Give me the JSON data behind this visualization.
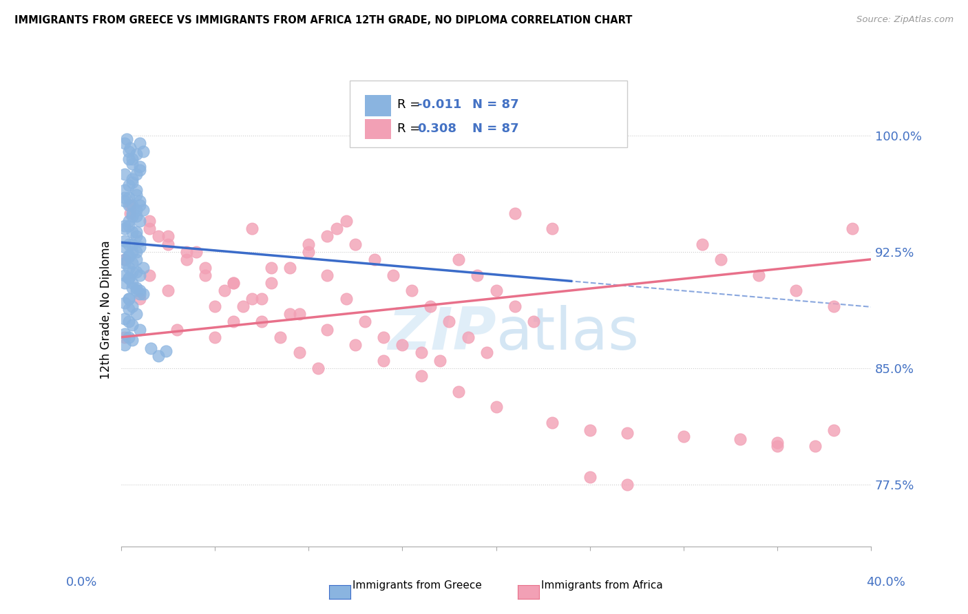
{
  "title": "IMMIGRANTS FROM GREECE VS IMMIGRANTS FROM AFRICA 12TH GRADE, NO DIPLOMA CORRELATION CHART",
  "source": "Source: ZipAtlas.com",
  "ylabel": "12th Grade, No Diploma",
  "y_ticks": [
    0.775,
    0.85,
    0.925,
    1.0
  ],
  "y_tick_labels": [
    "77.5%",
    "85.0%",
    "92.5%",
    "100.0%"
  ],
  "xmin": 0.0,
  "xmax": 0.4,
  "ymin": 0.735,
  "ymax": 1.04,
  "color_greece": "#8AB4E0",
  "color_africa": "#F2A0B5",
  "color_greece_line": "#3B6CC9",
  "color_africa_line": "#E8708A",
  "color_axis_labels": "#4472C4",
  "greece_R": -0.011,
  "greece_N": 87,
  "africa_R": 0.308,
  "africa_N": 87,
  "greece_scatter_x": [
    0.002,
    0.004,
    0.006,
    0.003,
    0.005,
    0.008,
    0.01,
    0.006,
    0.012,
    0.004,
    0.002,
    0.006,
    0.01,
    0.008,
    0.004,
    0.002,
    0.006,
    0.012,
    0.008,
    0.01,
    0.004,
    0.002,
    0.006,
    0.008,
    0.01,
    0.004,
    0.002,
    0.006,
    0.004,
    0.008,
    0.002,
    0.004,
    0.006,
    0.01,
    0.008,
    0.002,
    0.004,
    0.006,
    0.008,
    0.01,
    0.002,
    0.004,
    0.006,
    0.002,
    0.004,
    0.006,
    0.008,
    0.01,
    0.012,
    0.004,
    0.002,
    0.006,
    0.01,
    0.008,
    0.004,
    0.002,
    0.006,
    0.012,
    0.008,
    0.01,
    0.004,
    0.002,
    0.006,
    0.008,
    0.01,
    0.004,
    0.002,
    0.006,
    0.004,
    0.008,
    0.002,
    0.004,
    0.006,
    0.01,
    0.008,
    0.002,
    0.004,
    0.006,
    0.008,
    0.01,
    0.002,
    0.004,
    0.006,
    0.002,
    0.016,
    0.024,
    0.02
  ],
  "greece_scatter_y": [
    0.995,
    0.99,
    0.985,
    0.998,
    0.992,
    0.988,
    0.995,
    0.982,
    0.99,
    0.985,
    0.975,
    0.97,
    0.98,
    0.965,
    0.96,
    0.958,
    0.955,
    0.952,
    0.948,
    0.945,
    0.942,
    0.94,
    0.938,
    0.935,
    0.932,
    0.93,
    0.928,
    0.925,
    0.923,
    0.92,
    0.96,
    0.955,
    0.95,
    0.958,
    0.962,
    0.965,
    0.968,
    0.972,
    0.975,
    0.978,
    0.918,
    0.915,
    0.912,
    0.91,
    0.908,
    0.905,
    0.902,
    0.9,
    0.898,
    0.895,
    0.932,
    0.93,
    0.928,
    0.925,
    0.922,
    0.92,
    0.918,
    0.915,
    0.912,
    0.91,
    0.908,
    0.905,
    0.902,
    0.9,
    0.898,
    0.895,
    0.892,
    0.89,
    0.888,
    0.885,
    0.882,
    0.88,
    0.878,
    0.875,
    0.938,
    0.942,
    0.945,
    0.948,
    0.952,
    0.955,
    0.872,
    0.87,
    0.868,
    0.865,
    0.863,
    0.861,
    0.858
  ],
  "africa_scatter_x": [
    0.002,
    0.005,
    0.01,
    0.015,
    0.02,
    0.025,
    0.03,
    0.04,
    0.05,
    0.06,
    0.07,
    0.08,
    0.09,
    0.1,
    0.11,
    0.12,
    0.13,
    0.14,
    0.15,
    0.16,
    0.17,
    0.18,
    0.19,
    0.2,
    0.21,
    0.22,
    0.002,
    0.015,
    0.025,
    0.035,
    0.045,
    0.055,
    0.065,
    0.075,
    0.085,
    0.095,
    0.105,
    0.115,
    0.125,
    0.135,
    0.145,
    0.155,
    0.165,
    0.175,
    0.185,
    0.195,
    0.05,
    0.06,
    0.07,
    0.08,
    0.09,
    0.1,
    0.11,
    0.12,
    0.005,
    0.015,
    0.025,
    0.035,
    0.045,
    0.06,
    0.075,
    0.095,
    0.11,
    0.125,
    0.14,
    0.16,
    0.18,
    0.2,
    0.23,
    0.25,
    0.27,
    0.3,
    0.33,
    0.35,
    0.37,
    0.39,
    0.31,
    0.32,
    0.34,
    0.36,
    0.38,
    0.25,
    0.27,
    0.35,
    0.38,
    0.21,
    0.23
  ],
  "africa_scatter_y": [
    0.92,
    0.95,
    0.895,
    0.91,
    0.935,
    0.9,
    0.875,
    0.925,
    0.89,
    0.905,
    0.94,
    0.915,
    0.885,
    0.93,
    0.91,
    0.895,
    0.88,
    0.87,
    0.865,
    0.86,
    0.855,
    0.92,
    0.91,
    0.9,
    0.89,
    0.88,
    0.87,
    0.94,
    0.93,
    0.92,
    0.91,
    0.9,
    0.89,
    0.88,
    0.87,
    0.86,
    0.85,
    0.94,
    0.93,
    0.92,
    0.91,
    0.9,
    0.89,
    0.88,
    0.87,
    0.86,
    0.87,
    0.88,
    0.895,
    0.905,
    0.915,
    0.925,
    0.935,
    0.945,
    0.955,
    0.945,
    0.935,
    0.925,
    0.915,
    0.905,
    0.895,
    0.885,
    0.875,
    0.865,
    0.855,
    0.845,
    0.835,
    0.825,
    0.815,
    0.81,
    0.808,
    0.806,
    0.804,
    0.802,
    0.8,
    0.94,
    0.93,
    0.92,
    0.91,
    0.9,
    0.89,
    0.78,
    0.775,
    0.8,
    0.81,
    0.95,
    0.94
  ]
}
